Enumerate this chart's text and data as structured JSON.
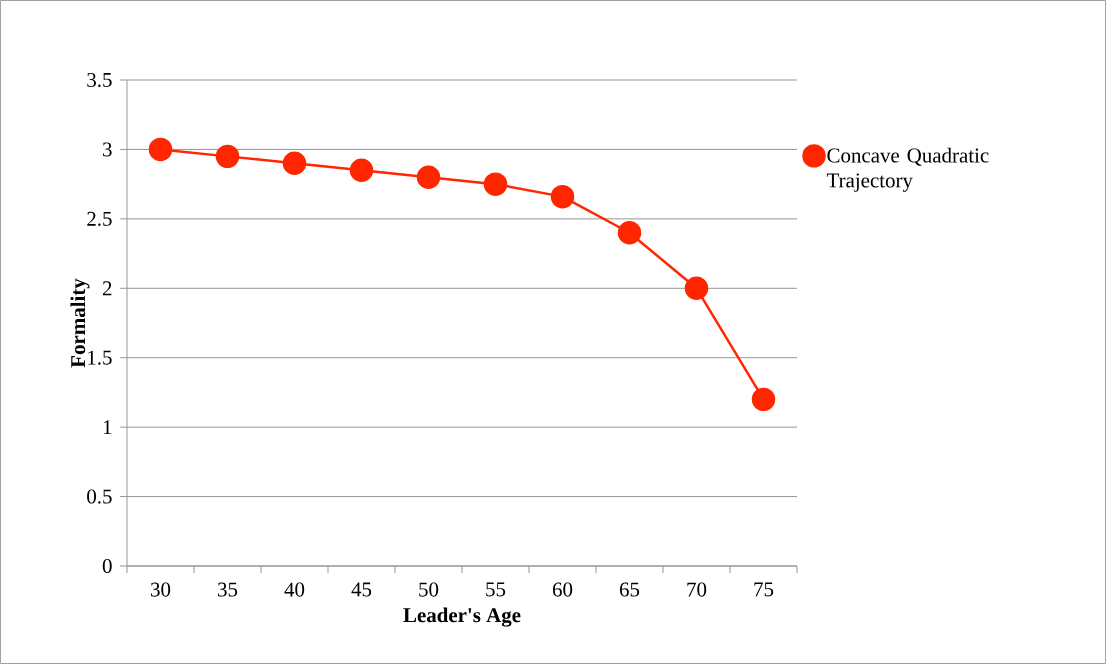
{
  "chart_data": {
    "type": "line",
    "xlabel": "Leader's Age",
    "ylabel": "Formality",
    "categories": [
      "30",
      "35",
      "40",
      "45",
      "50",
      "55",
      "60",
      "65",
      "70",
      "75"
    ],
    "series": [
      {
        "name": "Concave Quadratic Trajectory",
        "color": "#ff2600",
        "values": [
          3.0,
          2.95,
          2.9,
          2.85,
          2.8,
          2.75,
          2.66,
          2.4,
          2.0,
          1.2
        ]
      }
    ],
    "ylim": [
      0,
      3.5
    ],
    "yticks": [
      0,
      0.5,
      1,
      1.5,
      2,
      2.5,
      3,
      3.5
    ],
    "grid": "y",
    "legend": "right",
    "marker": "circle",
    "line_style": "solid"
  }
}
